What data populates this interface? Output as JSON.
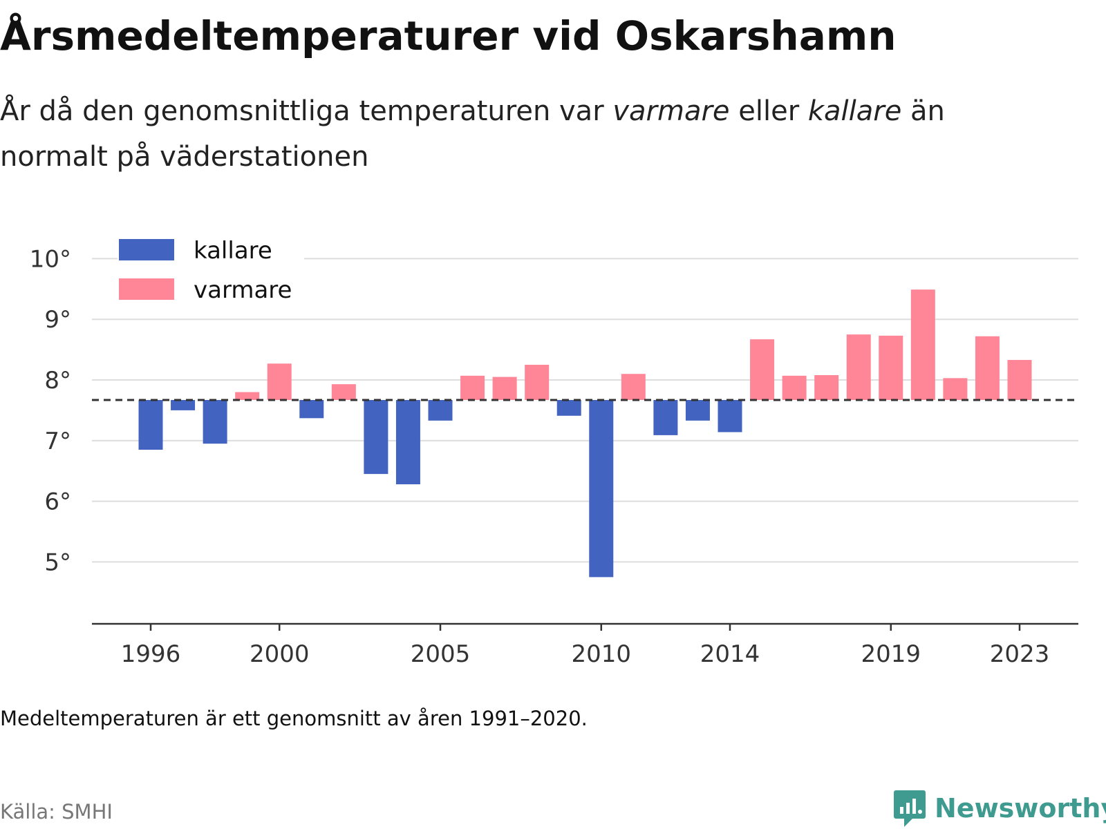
{
  "title": "Årsmedeltemperaturer vid Oskarshamn",
  "subtitle": {
    "part1": "År då den genomsnittliga temperaturen var ",
    "warm_word": "varmare",
    "part2": " eller ",
    "cold_word": "kallare",
    "part3": " än normalt på väderstationen"
  },
  "chart_data": {
    "type": "bar",
    "baseline": 7.67,
    "baseline_style": "dashed",
    "y_ticks": [
      5,
      6,
      7,
      8,
      9,
      10
    ],
    "y_tick_labels": [
      "5°",
      "6°",
      "7°",
      "8°",
      "9°",
      "10°"
    ],
    "ylim": [
      3.98,
      10.05
    ],
    "x_ticks": [
      1996,
      2000,
      2005,
      2010,
      2014,
      2019,
      2023
    ],
    "x_tick_labels": [
      "1996",
      "2000",
      "2005",
      "2010",
      "2014",
      "2019",
      "2023"
    ],
    "grid": "horizontal",
    "legend": {
      "placement": "top-left",
      "entries": [
        {
          "label": "kallare",
          "color": "#4263c0"
        },
        {
          "label": "varmare",
          "color": "#ff8696"
        }
      ]
    },
    "years": [
      1996,
      1997,
      1998,
      1999,
      2000,
      2001,
      2002,
      2003,
      2004,
      2005,
      2006,
      2007,
      2008,
      2009,
      2010,
      2011,
      2012,
      2013,
      2014,
      2015,
      2016,
      2017,
      2018,
      2019,
      2020,
      2021,
      2022,
      2023
    ],
    "values": [
      6.85,
      7.5,
      6.95,
      7.8,
      8.27,
      7.37,
      7.93,
      6.45,
      6.28,
      7.33,
      8.07,
      8.05,
      8.25,
      7.41,
      4.75,
      8.1,
      7.09,
      7.33,
      7.14,
      8.67,
      8.07,
      8.08,
      8.75,
      8.73,
      9.49,
      8.03,
      8.72,
      8.33
    ]
  },
  "colors": {
    "cold": "#4263c0",
    "warm": "#ff8696",
    "baseline": "#333333",
    "grid": "#dddddd",
    "axis": "#333333"
  },
  "note": "Medeltemperaturen är ett genomsnitt av åren 1991–2020.",
  "source": "Källa: SMHI",
  "brand": {
    "name": "Newsworthy",
    "icon": "newsworthy-logo-icon",
    "color": "#3f9a90"
  }
}
